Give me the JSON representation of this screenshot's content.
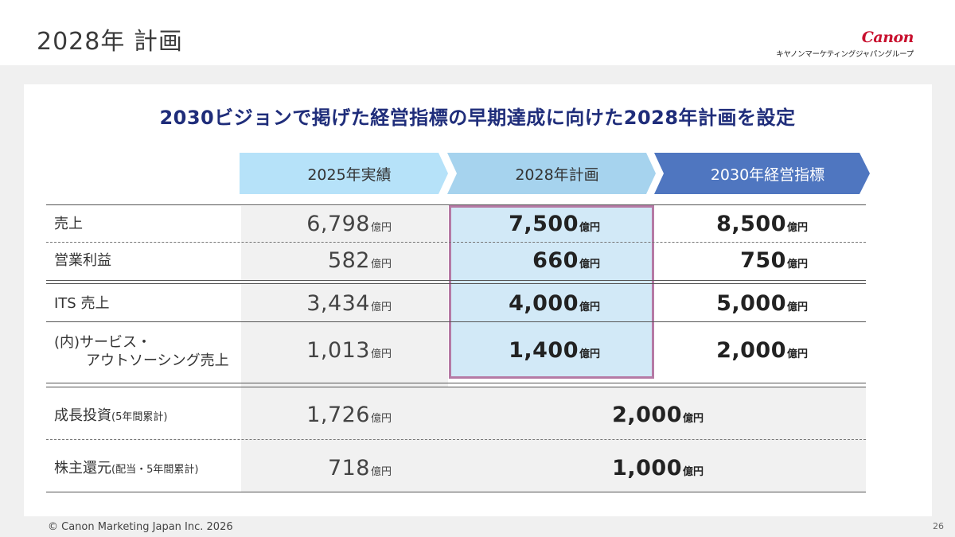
{
  "page": {
    "title": "2028年 計画",
    "page_number": "26",
    "copyright": "© Canon Marketing Japan Inc. 2026"
  },
  "logo": {
    "brand": "Canon",
    "subtitle": "キヤノンマーケティングジャパングループ"
  },
  "headline": "2030ビジョンで掲げた経営指標の早期達成に向けた2028年計画を設定",
  "columns": [
    "2025年実績",
    "2028年計画",
    "2030年経営指標"
  ],
  "unit": "億円",
  "rows": [
    {
      "label": "売上",
      "values": [
        "6,798",
        "7,500",
        "8,500"
      ]
    },
    {
      "label": "営業利益",
      "values": [
        "582",
        "660",
        "750"
      ]
    },
    {
      "label": "ITS 売上",
      "values": [
        "3,434",
        "4,000",
        "5,000"
      ]
    },
    {
      "label_line1": "(内)サービス・",
      "label_line2": "アウトソーシング売上",
      "values": [
        "1,013",
        "1,400",
        "2,000"
      ]
    },
    {
      "label": "成長投資",
      "note": "(5年間累計)",
      "values": [
        "1,726",
        "2,000"
      ]
    },
    {
      "label": "株主還元",
      "note": "(配当・5年間累計)",
      "values": [
        "718",
        "1,000"
      ]
    }
  ]
}
